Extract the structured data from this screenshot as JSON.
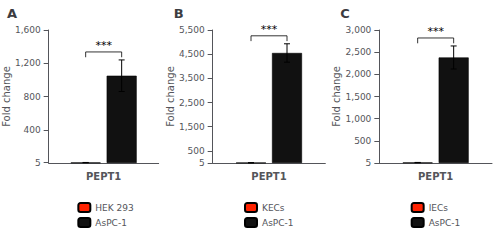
{
  "chart_data": [
    {
      "type": "bar",
      "title": "A",
      "categories": [
        "PEPT1"
      ],
      "ylabel": "Fold change",
      "series": [
        {
          "name": "HEK 293",
          "color": "#ff2200",
          "values": [
            5
          ],
          "errors": [
            1.5
          ]
        },
        {
          "name": "AsPC-1",
          "color": "#111111",
          "values": [
            1050
          ],
          "errors": [
            190
          ]
        }
      ],
      "ylim": [
        0,
        1600
      ],
      "yticks": [
        5,
        400,
        800,
        {
          "value": 1200,
          "label": "1,200"
        },
        {
          "value": 1600,
          "label": "1,600"
        }
      ],
      "annotation": "***",
      "legend": "bottom",
      "grid": false
    },
    {
      "type": "bar",
      "title": "B",
      "categories": [
        "PEPT1"
      ],
      "ylabel": "Fold change",
      "series": [
        {
          "name": "KECs",
          "color": "#ff2200",
          "values": [
            10
          ],
          "errors": [
            3
          ]
        },
        {
          "name": "AsPC-1",
          "color": "#111111",
          "values": [
            4550
          ],
          "errors": [
            380
          ]
        }
      ],
      "ylim": [
        0,
        5500
      ],
      "yticks": [
        5,
        500,
        {
          "value": 1500,
          "label": "1,500"
        },
        {
          "value": 2500,
          "label": "2,500"
        },
        {
          "value": 3500,
          "label": "3,500"
        },
        {
          "value": 4500,
          "label": "4,500"
        },
        {
          "value": 5500,
          "label": "5,500"
        }
      ],
      "annotation": "***",
      "legend": "bottom",
      "grid": false
    },
    {
      "type": "bar",
      "title": "C",
      "categories": [
        "PEPT1"
      ],
      "ylabel": "Fold change",
      "series": [
        {
          "name": "IECs",
          "color": "#ff2200",
          "values": [
            10
          ],
          "errors": [
            3
          ]
        },
        {
          "name": "AsPC-1",
          "color": "#111111",
          "values": [
            2380
          ],
          "errors": [
            260
          ]
        }
      ],
      "ylim": [
        0,
        3000
      ],
      "yticks": [
        5,
        500,
        {
          "value": 1000,
          "label": "1,000"
        },
        {
          "value": 1500,
          "label": "1,500"
        },
        {
          "value": 2000,
          "label": "2,000"
        },
        {
          "value": 2500,
          "label": "2,500"
        },
        {
          "value": 3000,
          "label": "3,000"
        }
      ],
      "annotation": "***",
      "legend": "bottom",
      "grid": false
    }
  ]
}
